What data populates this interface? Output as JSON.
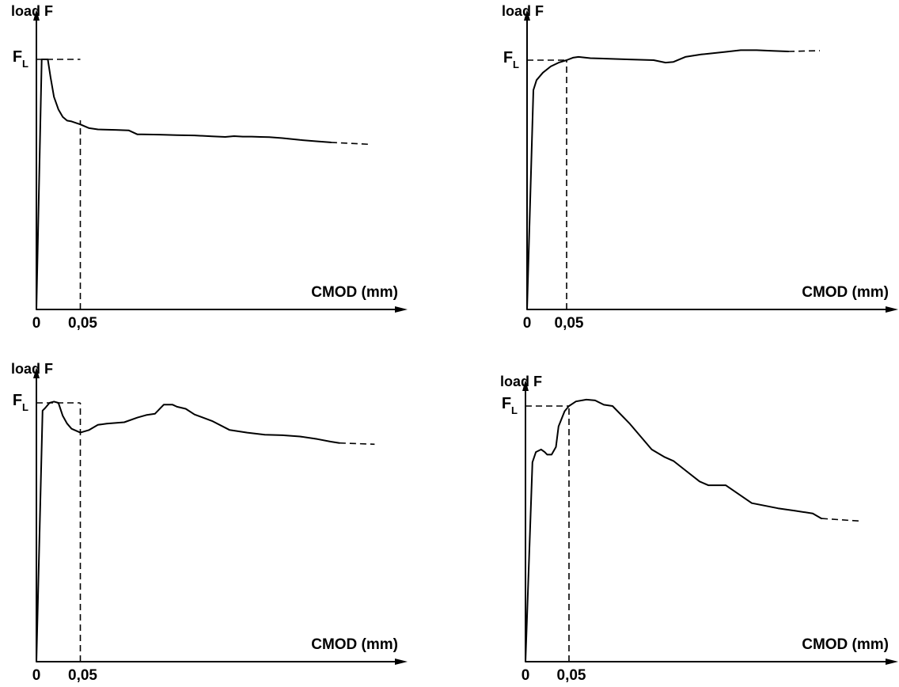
{
  "chart_data": [
    {
      "type": "line",
      "ylabel": "load F",
      "xlabel": "CMOD (mm)",
      "x_ticks": [
        "0",
        "0,05"
      ],
      "reference_label": {
        "main": "F",
        "sub": "L"
      },
      "xlim": [
        0,
        0.42
      ],
      "ylim": [
        0,
        1.05
      ],
      "reference_line": {
        "x": 0.05,
        "y": 1.0
      },
      "series": [
        {
          "x": [
            0,
            0.006,
            0.01,
            0.013,
            0.016,
            0.02,
            0.025,
            0.03,
            0.035,
            0.04,
            0.05,
            0.06,
            0.07,
            0.09,
            0.105,
            0.115,
            0.12,
            0.14,
            0.16,
            0.18,
            0.2,
            0.215,
            0.225,
            0.235,
            0.245,
            0.255,
            0.265,
            0.28,
            0.3,
            0.32,
            0.335
          ],
          "y": [
            0,
            1.0,
            1.0,
            1.0,
            0.93,
            0.85,
            0.8,
            0.77,
            0.755,
            0.752,
            0.74,
            0.725,
            0.72,
            0.718,
            0.716,
            0.7,
            0.7,
            0.699,
            0.697,
            0.696,
            0.692,
            0.69,
            0.693,
            0.691,
            0.691,
            0.69,
            0.689,
            0.685,
            0.678,
            0.672,
            0.668
          ]
        }
      ],
      "dashed_tail": {
        "x": [
          0.335,
          0.38
        ],
        "y": [
          0.668,
          0.66
        ]
      }
    },
    {
      "type": "line",
      "ylabel": "load F",
      "xlabel": "CMOD (mm)",
      "x_ticks": [
        "0",
        "0,05"
      ],
      "reference_label": {
        "main": "F",
        "sub": "L"
      },
      "xlim": [
        0,
        0.42
      ],
      "ylim": [
        0,
        1.05
      ],
      "reference_line": {
        "x": 0.05,
        "y": 1.0
      },
      "series": [
        {
          "x": [
            0,
            0.008,
            0.012,
            0.02,
            0.03,
            0.04,
            0.05,
            0.058,
            0.065,
            0.08,
            0.1,
            0.13,
            0.16,
            0.175,
            0.185,
            0.2,
            0.22,
            0.25,
            0.27,
            0.29,
            0.31,
            0.33
          ],
          "y": [
            0,
            0.88,
            0.92,
            0.95,
            0.975,
            0.99,
            1.0,
            1.01,
            1.013,
            1.008,
            1.006,
            1.003,
            1.0,
            0.99,
            0.993,
            1.013,
            1.023,
            1.033,
            1.04,
            1.04,
            1.037,
            1.035
          ]
        }
      ],
      "dashed_tail": {
        "x": [
          0.33,
          0.37
        ],
        "y": [
          1.035,
          1.038
        ]
      }
    },
    {
      "type": "line",
      "ylabel": "load F",
      "xlabel": "CMOD (mm)",
      "x_ticks": [
        "0",
        "0,05"
      ],
      "reference_label": {
        "main": "F",
        "sub": "L"
      },
      "xlim": [
        0,
        0.42
      ],
      "ylim": [
        0,
        1.05
      ],
      "reference_line": {
        "x": 0.05,
        "y": 1.0
      },
      "series": [
        {
          "x": [
            0,
            0.007,
            0.01,
            0.015,
            0.02,
            0.025,
            0.03,
            0.035,
            0.04,
            0.05,
            0.06,
            0.07,
            0.08,
            0.1,
            0.115,
            0.125,
            0.135,
            0.145,
            0.155,
            0.16,
            0.17,
            0.18,
            0.2,
            0.22,
            0.24,
            0.26,
            0.28,
            0.3,
            0.32,
            0.335,
            0.345
          ],
          "y": [
            0,
            0.97,
            0.98,
            1.0,
            1.005,
            1.0,
            0.95,
            0.92,
            0.9,
            0.885,
            0.895,
            0.915,
            0.92,
            0.925,
            0.943,
            0.953,
            0.958,
            0.993,
            0.993,
            0.985,
            0.977,
            0.955,
            0.93,
            0.895,
            0.885,
            0.877,
            0.875,
            0.87,
            0.86,
            0.85,
            0.845
          ]
        }
      ],
      "dashed_tail": {
        "x": [
          0.345,
          0.385
        ],
        "y": [
          0.845,
          0.84
        ]
      }
    },
    {
      "type": "line",
      "ylabel": "load F",
      "xlabel": "CMOD (mm)",
      "x_ticks": [
        "0",
        "0,05"
      ],
      "reference_label": {
        "main": "F",
        "sub": "L"
      },
      "xlim": [
        0,
        0.42
      ],
      "ylim": [
        0,
        1.05
      ],
      "reference_line": {
        "x": 0.05,
        "y": 1.0
      },
      "series": [
        {
          "x": [
            0,
            0.008,
            0.012,
            0.018,
            0.022,
            0.025,
            0.03,
            0.035,
            0.038,
            0.045,
            0.05,
            0.058,
            0.07,
            0.08,
            0.09,
            0.1,
            0.12,
            0.145,
            0.16,
            0.17,
            0.185,
            0.2,
            0.21,
            0.23,
            0.26,
            0.29,
            0.31,
            0.33,
            0.34
          ],
          "y": [
            0,
            0.78,
            0.82,
            0.83,
            0.82,
            0.81,
            0.81,
            0.84,
            0.92,
            0.98,
            1.0,
            1.018,
            1.025,
            1.022,
            1.005,
            1.0,
            0.93,
            0.83,
            0.8,
            0.785,
            0.745,
            0.705,
            0.69,
            0.69,
            0.62,
            0.6,
            0.59,
            0.58,
            0.56
          ]
        }
      ],
      "dashed_tail": {
        "x": [
          0.34,
          0.385
        ],
        "y": [
          0.56,
          0.55
        ]
      }
    }
  ]
}
